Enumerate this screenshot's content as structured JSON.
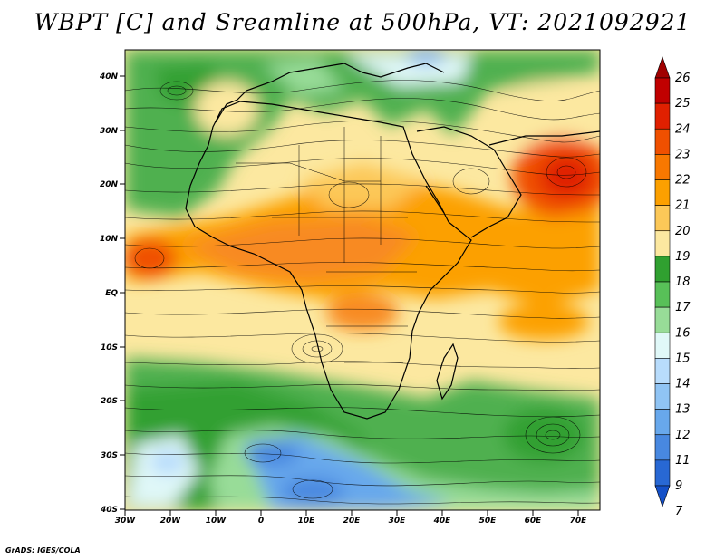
{
  "title": "WBPT [C] and Sreamline at 500hPa, VT: 2021092921",
  "credit": "GrADS: IGES/COLA",
  "lat_labels": [
    "40N",
    "30N",
    "20N",
    "10N",
    "EQ",
    "10S",
    "20S",
    "30S",
    "40S"
  ],
  "lon_labels": [
    "30W",
    "20W",
    "10W",
    "0",
    "10E",
    "20E",
    "30E",
    "40E",
    "50E",
    "60E",
    "70E"
  ],
  "colorbar": {
    "levels": [
      "26",
      "25",
      "24",
      "23",
      "22",
      "21",
      "20",
      "19",
      "18",
      "17",
      "16",
      "15",
      "14",
      "13",
      "12",
      "11",
      "9",
      "7"
    ],
    "colors": [
      "#a00000",
      "#c00000",
      "#e02000",
      "#f05000",
      "#f87800",
      "#fca000",
      "#fcc858",
      "#fce8a0",
      "#30a030",
      "#58c058",
      "#98dc98",
      "#e0f8f8",
      "#b8dcfc",
      "#90c4f4",
      "#68a8ec",
      "#4888e0",
      "#2868d4",
      "#1450c8"
    ]
  },
  "chart_data": {
    "type": "heatmap",
    "title": "WBPT [C] and Sreamline at 500hPa, VT: 2021092921",
    "variable": "wet-bulb potential temperature (C) with streamlines",
    "level": "500hPa",
    "valid_time": "2021092921",
    "lon_range": [
      -30,
      75
    ],
    "lat_range": [
      -40,
      45
    ],
    "colorbar_range": [
      7,
      26
    ],
    "regions": [
      {
        "area": "NE Atlantic / Europe / Mediterranean",
        "wbpt_band": "16-18"
      },
      {
        "area": "Sahara / Sahel / tropical Africa",
        "wbpt_band": "19-22"
      },
      {
        "area": "Arabia / Iran (25N, 65E)",
        "wbpt_band": "22-24"
      },
      {
        "area": "Tropical Atlantic near 8N, 25W",
        "wbpt_band": "21-22"
      },
      {
        "area": "Southern Africa / Indian Ocean 10-25S",
        "wbpt_band": "19-20"
      },
      {
        "area": "South Atlantic / S Indian Ocean 20-30S",
        "wbpt_band": "16-18"
      },
      {
        "area": "South Atlantic 30-40S, 10W-30E",
        "wbpt_band": "11-14"
      }
    ]
  }
}
